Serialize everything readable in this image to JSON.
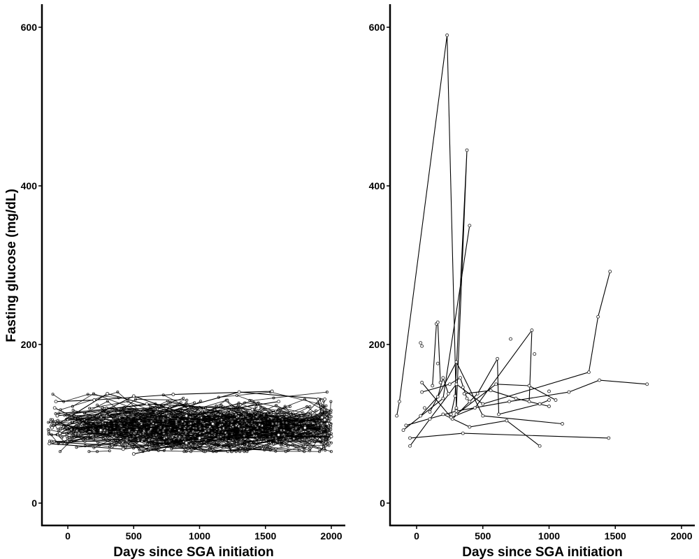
{
  "chart_data": [
    {
      "type": "line",
      "panel": "left",
      "xlabel": "Days since SGA initiation",
      "ylabel": "Fasting glucose (mg/dL)",
      "xlim": [
        -200,
        2100
      ],
      "ylim": [
        -30,
        630
      ],
      "x_ticks": [
        0,
        500,
        1000,
        1500,
        2000
      ],
      "y_ticks": [
        0,
        200,
        400,
        600
      ],
      "grid": false,
      "legend": "none",
      "description_of_density": "several hundred individual trajectories, values mostly between 70 and 135 mg/dL, spanning -150 to 2000 days",
      "dense_band": {
        "x_range": [
          -150,
          2000
        ],
        "y_center": 95,
        "y_spread": 20,
        "y_min": 65,
        "y_max": 140
      },
      "series": [
        {
          "points": [
            [
              -120,
              95
            ],
            [
              300,
              138
            ],
            [
              900,
              110
            ],
            [
              1600,
              128
            ]
          ]
        },
        {
          "points": [
            [
              -100,
              120
            ],
            [
              250,
              92
            ],
            [
              1300,
              140
            ],
            [
              1950,
              131
            ]
          ]
        },
        {
          "points": [
            [
              -60,
              88
            ],
            [
              500,
              135
            ],
            [
              1100,
              100
            ],
            [
              1950,
              105
            ]
          ]
        },
        {
          "points": [
            [
              -140,
              75
            ],
            [
              420,
              68
            ],
            [
              1000,
              82
            ],
            [
              2000,
              84
            ]
          ]
        },
        {
          "points": [
            [
              -80,
              110
            ],
            [
              600,
              125
            ],
            [
              1400,
              118
            ],
            [
              1800,
              95
            ]
          ]
        },
        {
          "points": [
            [
              500,
              62
            ],
            [
              900,
              76
            ],
            [
              1600,
              86
            ]
          ]
        },
        {
          "points": [
            [
              1900,
              131
            ],
            [
              1930,
              108
            ],
            [
              1970,
              100
            ]
          ]
        },
        {
          "points": [
            [
              -90,
              128
            ],
            [
              200,
              130
            ],
            [
              800,
              137
            ],
            [
              1550,
              141
            ]
          ]
        }
      ]
    },
    {
      "type": "line",
      "panel": "right",
      "xlabel": "Days since SGA initiation",
      "ylabel": "",
      "xlim": [
        -200,
        2100
      ],
      "ylim": [
        -30,
        630
      ],
      "x_ticks": [
        0,
        500,
        1000,
        1500,
        2000
      ],
      "y_ticks": [
        0,
        200,
        400,
        600
      ],
      "grid": false,
      "legend": "none",
      "series": [
        {
          "points": [
            [
              -150,
              110
            ],
            [
              -130,
              128
            ],
            [
              230,
              590
            ],
            [
              300,
              118
            ]
          ]
        },
        {
          "points": [
            [
              260,
              112
            ],
            [
              290,
              135
            ],
            [
              380,
              445
            ],
            [
              300,
              120
            ]
          ]
        },
        {
          "points": [
            [
              -100,
              92
            ],
            [
              200,
              132
            ],
            [
              400,
              350
            ]
          ]
        },
        {
          "points": [
            [
              -50,
              72
            ],
            [
              100,
              106
            ],
            [
              300,
              150
            ],
            [
              500,
              125
            ],
            [
              1300,
              165
            ],
            [
              1370,
              235
            ],
            [
              1460,
              292
            ]
          ]
        },
        {
          "points": [
            [
              120,
              148
            ],
            [
              150,
              226
            ],
            [
              160,
              228
            ],
            [
              180,
              152
            ]
          ]
        },
        {
          "points": [
            [
              30,
              110
            ],
            [
              160,
              134
            ],
            [
              200,
              158
            ],
            [
              240,
              138
            ]
          ]
        },
        {
          "points": [
            [
              -80,
              98
            ],
            [
              300,
              116
            ],
            [
              700,
              128
            ],
            [
              1150,
              140
            ],
            [
              1380,
              155
            ],
            [
              1740,
              150
            ]
          ]
        },
        {
          "points": [
            [
              -50,
              82
            ],
            [
              350,
              88
            ],
            [
              1450,
              82
            ]
          ]
        },
        {
          "points": [
            [
              100,
              115
            ],
            [
              300,
              178
            ],
            [
              500,
              110
            ],
            [
              1100,
              100
            ]
          ]
        },
        {
          "points": [
            [
              200,
              112
            ],
            [
              400,
              96
            ],
            [
              680,
              104
            ],
            [
              930,
              72
            ]
          ]
        },
        {
          "points": [
            [
              270,
              106
            ],
            [
              460,
              138
            ],
            [
              610,
              182
            ],
            [
              620,
              112
            ],
            [
              930,
              125
            ],
            [
              1000,
              130
            ]
          ]
        },
        {
          "points": [
            [
              40,
              152
            ],
            [
              260,
              108
            ],
            [
              440,
              120
            ],
            [
              870,
              218
            ],
            [
              850,
              128
            ]
          ]
        },
        {
          "points": [
            [
              300,
              112
            ],
            [
              600,
              150
            ],
            [
              850,
              148
            ],
            [
              1050,
              130
            ]
          ]
        },
        {
          "points": [
            [
              360,
              138
            ],
            [
              560,
              142
            ],
            [
              750,
              132
            ],
            [
              1000,
              122
            ]
          ]
        },
        {
          "points": [
            [
              40,
              140
            ],
            [
              250,
              150
            ],
            [
              330,
              158
            ],
            [
              380,
              132
            ],
            [
              400,
              128
            ]
          ]
        }
      ],
      "isolated_points": [
        [
          30,
          202
        ],
        [
          40,
          198
        ],
        [
          710,
          207
        ],
        [
          890,
          188
        ],
        [
          1000,
          141
        ],
        [
          60,
          120
        ],
        [
          160,
          176
        ],
        [
          350,
          146
        ]
      ]
    }
  ]
}
